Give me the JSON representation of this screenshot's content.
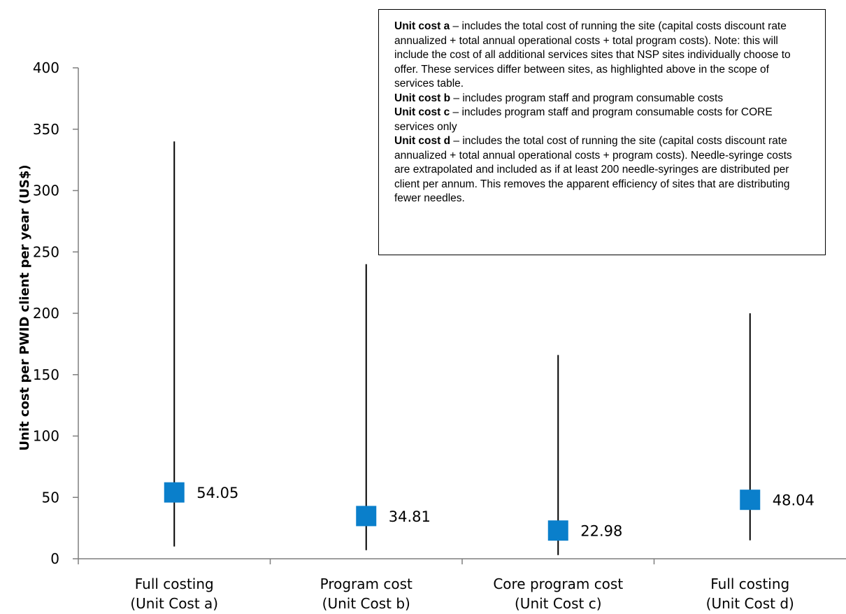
{
  "chart_data": {
    "type": "range",
    "ylabel": "Unit cost per PWID client per year  (US$)",
    "ylim": [
      0,
      400
    ],
    "yticks": [
      "0",
      "50",
      "100",
      "150",
      "200",
      "250",
      "300",
      "350",
      "400"
    ],
    "categories": [
      [
        "Full costing",
        "(Unit Cost a)"
      ],
      [
        "Program cost",
        "(Unit Cost b)"
      ],
      [
        "Core program cost",
        "(Unit Cost c)"
      ],
      [
        "Full costing",
        "(Unit Cost d)"
      ]
    ],
    "series": [
      {
        "values": [
          54.05,
          34.81,
          22.98,
          48.04
        ],
        "labels": [
          "54.05",
          "34.81",
          "22.98",
          "48.04"
        ]
      }
    ],
    "ranges": [
      {
        "low": 10,
        "high": 340
      },
      {
        "low": 7,
        "high": 240
      },
      {
        "low": 3,
        "high": 166
      },
      {
        "low": 15,
        "high": 200
      }
    ],
    "colors": {
      "marker": "#0a7fcb",
      "line": "#000000",
      "axis": "#7f7f7f"
    },
    "grid": false,
    "legend": "none"
  },
  "notes": {
    "a_term": "Unit cost a",
    "a_text": " – includes the total cost of running the site (capital costs discount rate annualized + total annual operational costs + total program costs). Note: this will include the cost of all additional services sites that NSP sites individually choose to offer. These services differ between sites, as highlighted above in the scope of services table.",
    "b_term": "Unit cost b",
    "b_text": " – includes program staff and program consumable costs",
    "c_term": "Unit cost c",
    "c_text": " – includes program staff and program consumable costs for CORE services only",
    "d_term": "Unit cost d",
    "d_text": " – includes the total cost of running the site (capital costs discount rate annualized + total annual operational costs + program costs). Needle-syringe costs are extrapolated and included as if at least 200 needle-syringes are distributed per client per annum. This removes the apparent efficiency of sites that are distributing fewer needles."
  }
}
